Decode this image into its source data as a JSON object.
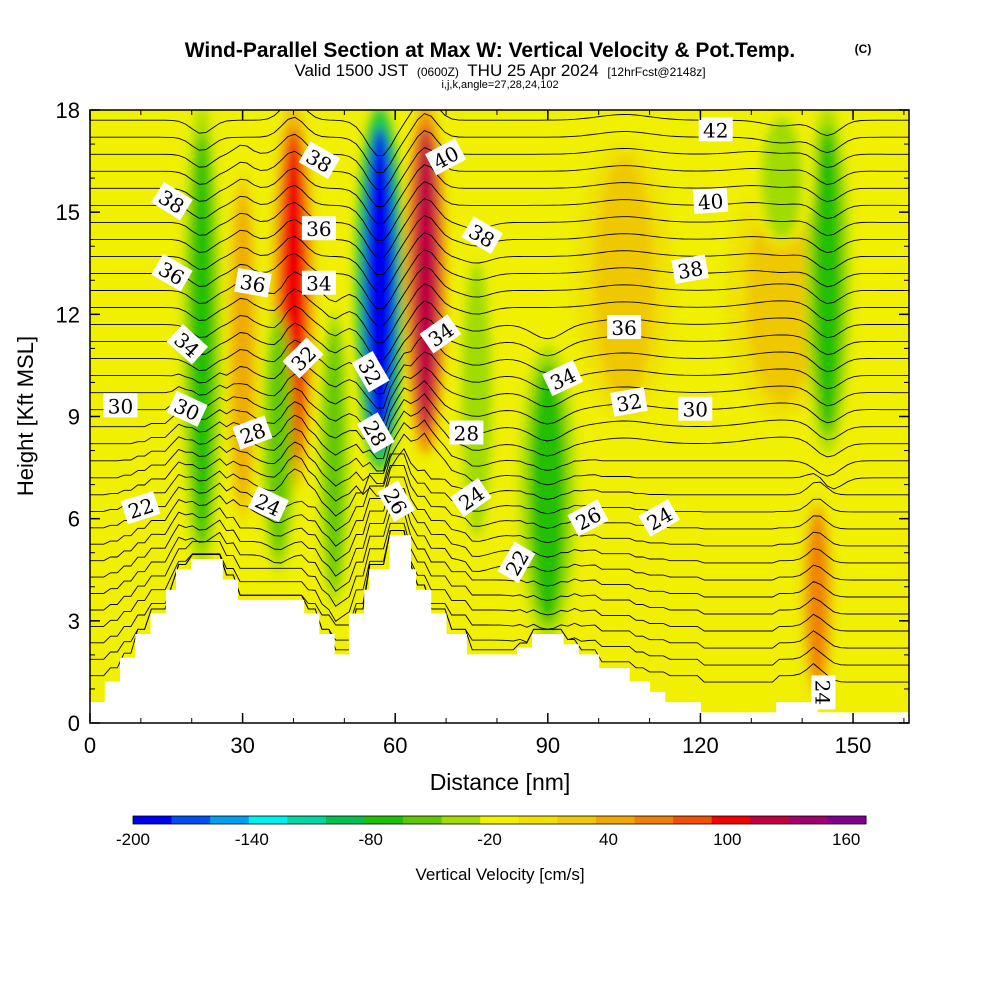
{
  "chart_data": {
    "type": "heatmap",
    "title": "Wind-Parallel Section at Max W: Vertical Velocity & Pot.Temp.",
    "title_mark": "(C)",
    "subtitle_valid": "Valid 1500 JST",
    "subtitle_utc": "(0600Z)",
    "subtitle_date": "THU 25 Apr 2024",
    "subtitle_fcst": "[12hrFcst@2148z]",
    "subtitle_indices": "i,j,k,angle=27,28,24,102",
    "xlabel": "Distance [nm]",
    "ylabel": "Height [Kft MSL]",
    "xlim": [
      0,
      161
    ],
    "ylim": [
      0,
      18
    ],
    "x_ticks": [
      0,
      30,
      60,
      90,
      120,
      150
    ],
    "x_tick_labels": [
      "0",
      "30",
      "60",
      "90",
      "120",
      "150"
    ],
    "y_ticks": [
      0,
      3,
      6,
      9,
      12,
      15,
      18
    ],
    "y_tick_labels": [
      "0",
      "3",
      "6",
      "9",
      "12",
      "15",
      "18"
    ],
    "colorbar": {
      "label": "Vertical Velocity [cm/s]",
      "bounds": [
        -200,
        170
      ],
      "step": 20,
      "tick_values": [
        -200,
        -140,
        -80,
        -20,
        40,
        100,
        160
      ],
      "tick_labels": [
        "-200",
        "-140",
        "-80",
        "-20",
        "40",
        "100",
        "160"
      ],
      "colors": [
        "#0000f0",
        "#0050f0",
        "#00a0f0",
        "#00f0f0",
        "#00d6a0",
        "#00c050",
        "#20c000",
        "#60c800",
        "#a0dc00",
        "#f0f000",
        "#f0e000",
        "#f0c800",
        "#f0a800",
        "#f08000",
        "#f05000",
        "#f00000",
        "#c00040",
        "#a00070",
        "#800090"
      ]
    },
    "vertical_velocity_bands": [
      {
        "x": 22,
        "top": 18,
        "bottom": 4.5,
        "half_width": 2.4,
        "w": -70
      },
      {
        "x": 30,
        "top": 16,
        "bottom": 6.0,
        "half_width": 1.8,
        "w": 50
      },
      {
        "x": 40,
        "top": 18,
        "bottom": 7.0,
        "half_width": 2.6,
        "w": 105
      },
      {
        "x": 37,
        "top": 12,
        "bottom": 4.5,
        "half_width": 2.0,
        "w": -45
      },
      {
        "x": 48,
        "top": 12,
        "bottom": 3.5,
        "half_width": 1.8,
        "w": -60
      },
      {
        "x": 57,
        "top": 18,
        "bottom": 7.5,
        "half_width": 3.0,
        "w": -190
      },
      {
        "x": 66,
        "top": 18,
        "bottom": 8.0,
        "half_width": 2.5,
        "w": 125
      },
      {
        "x": 76,
        "top": 14,
        "bottom": 5.0,
        "half_width": 3.0,
        "w": -35
      },
      {
        "x": 90,
        "top": 11,
        "bottom": 2.5,
        "half_width": 3.5,
        "w": -75
      },
      {
        "x": 105,
        "top": 17,
        "bottom": 9.0,
        "half_width": 6.0,
        "w": 30
      },
      {
        "x": 136,
        "top": 16,
        "bottom": 9.0,
        "half_width": 7.0,
        "w": 35
      },
      {
        "x": 145,
        "top": 18,
        "bottom": 8.0,
        "half_width": 2.8,
        "w": -80
      },
      {
        "x": 143,
        "top": 6.5,
        "bottom": 0.8,
        "half_width": 2.0,
        "w": 70
      },
      {
        "x": 136,
        "top": 18,
        "bottom": 14,
        "half_width": 4.0,
        "w": -30
      }
    ],
    "terrain": [
      [
        0,
        0.6
      ],
      [
        3,
        0.6
      ],
      [
        3,
        1.2
      ],
      [
        6,
        1.2
      ],
      [
        6,
        1.9
      ],
      [
        9,
        1.9
      ],
      [
        9,
        2.6
      ],
      [
        12,
        2.6
      ],
      [
        12,
        3.2
      ],
      [
        15,
        3.2
      ],
      [
        15,
        3.9
      ],
      [
        17,
        3.9
      ],
      [
        17,
        4.5
      ],
      [
        20,
        4.5
      ],
      [
        20,
        4.8
      ],
      [
        26,
        4.8
      ],
      [
        26,
        4.2
      ],
      [
        29,
        4.2
      ],
      [
        29,
        3.6
      ],
      [
        42,
        3.6
      ],
      [
        42,
        3.2
      ],
      [
        45,
        3.2
      ],
      [
        45,
        2.6
      ],
      [
        48,
        2.6
      ],
      [
        48,
        2.0
      ],
      [
        51,
        2.0
      ],
      [
        51,
        3.2
      ],
      [
        54,
        3.2
      ],
      [
        54,
        3.9
      ],
      [
        55,
        3.9
      ],
      [
        55,
        4.5
      ],
      [
        59,
        4.5
      ],
      [
        59,
        5.5
      ],
      [
        63,
        5.5
      ],
      [
        63,
        4.5
      ],
      [
        64,
        4.5
      ],
      [
        64,
        3.9
      ],
      [
        67,
        3.9
      ],
      [
        67,
        3.2
      ],
      [
        70,
        3.2
      ],
      [
        70,
        2.6
      ],
      [
        74,
        2.6
      ],
      [
        74,
        2.0
      ],
      [
        84,
        2.0
      ],
      [
        84,
        2.2
      ],
      [
        87,
        2.2
      ],
      [
        87,
        2.6
      ],
      [
        93,
        2.6
      ],
      [
        93,
        2.3
      ],
      [
        96,
        2.3
      ],
      [
        96,
        2.0
      ],
      [
        100,
        2.0
      ],
      [
        100,
        1.6
      ],
      [
        106,
        1.6
      ],
      [
        106,
        1.2
      ],
      [
        110,
        1.2
      ],
      [
        110,
        0.9
      ],
      [
        113,
        0.9
      ],
      [
        113,
        0.6
      ],
      [
        120,
        0.6
      ],
      [
        120,
        0.3
      ],
      [
        135,
        0.3
      ],
      [
        135,
        0.6
      ],
      [
        143,
        0.6
      ],
      [
        143,
        0.3
      ],
      [
        161,
        0.3
      ]
    ],
    "isentrope_labels": [
      {
        "text": "42",
        "x": 123,
        "y": 17.4,
        "angle": 0
      },
      {
        "text": "40",
        "x": 70,
        "y": 16.6,
        "angle": -28
      },
      {
        "text": "40",
        "x": 122,
        "y": 15.3,
        "angle": -4
      },
      {
        "text": "38",
        "x": 45,
        "y": 16.5,
        "angle": 30
      },
      {
        "text": "38",
        "x": 16,
        "y": 15.3,
        "angle": 32
      },
      {
        "text": "38",
        "x": 77,
        "y": 14.3,
        "angle": 30
      },
      {
        "text": "38",
        "x": 118,
        "y": 13.3,
        "angle": -10
      },
      {
        "text": "36",
        "x": 45,
        "y": 14.5,
        "angle": 0
      },
      {
        "text": "36",
        "x": 16,
        "y": 13.2,
        "angle": 30
      },
      {
        "text": "36",
        "x": 32,
        "y": 12.9,
        "angle": 10
      },
      {
        "text": "36",
        "x": 105,
        "y": 11.6,
        "angle": 0
      },
      {
        "text": "34",
        "x": 45,
        "y": 12.9,
        "angle": 0
      },
      {
        "text": "34",
        "x": 19,
        "y": 11.1,
        "angle": 42
      },
      {
        "text": "34",
        "x": 69,
        "y": 11.4,
        "angle": -35
      },
      {
        "text": "34",
        "x": 93,
        "y": 10.1,
        "angle": -25
      },
      {
        "text": "32",
        "x": 42,
        "y": 10.7,
        "angle": -45
      },
      {
        "text": "32",
        "x": 55,
        "y": 10.3,
        "angle": 60
      },
      {
        "text": "32",
        "x": 106,
        "y": 9.4,
        "angle": -10
      },
      {
        "text": "30",
        "x": 6,
        "y": 9.3,
        "angle": 0
      },
      {
        "text": "30",
        "x": 19,
        "y": 9.2,
        "angle": 25
      },
      {
        "text": "30",
        "x": 119,
        "y": 9.2,
        "angle": 0
      },
      {
        "text": "28",
        "x": 32,
        "y": 8.5,
        "angle": -20
      },
      {
        "text": "28",
        "x": 56,
        "y": 8.5,
        "angle": 60
      },
      {
        "text": "28",
        "x": 74,
        "y": 8.5,
        "angle": 0
      },
      {
        "text": "26",
        "x": 60,
        "y": 6.5,
        "angle": 60
      },
      {
        "text": "26",
        "x": 98,
        "y": 6.0,
        "angle": -28
      },
      {
        "text": "24",
        "x": 35,
        "y": 6.4,
        "angle": 25
      },
      {
        "text": "24",
        "x": 75,
        "y": 6.6,
        "angle": -35
      },
      {
        "text": "24",
        "x": 112,
        "y": 6.0,
        "angle": -30
      },
      {
        "text": "24",
        "x": 144,
        "y": 0.9,
        "angle": 90
      },
      {
        "text": "22",
        "x": 10,
        "y": 6.3,
        "angle": -18
      },
      {
        "text": "22",
        "x": 84,
        "y": 4.7,
        "angle": -60
      }
    ]
  }
}
